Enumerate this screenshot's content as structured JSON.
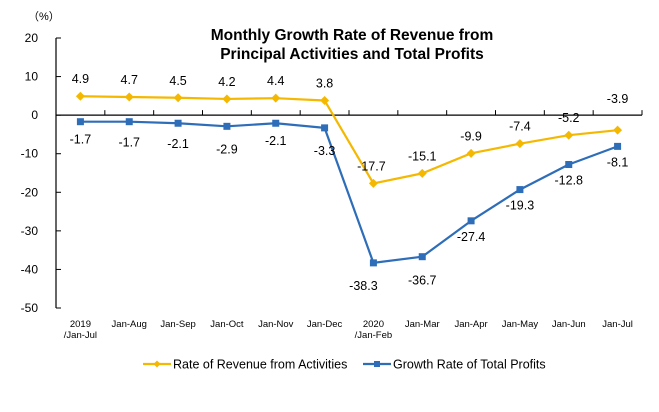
{
  "chart_data": {
    "type": "line",
    "title": [
      "Monthly Growth Rate of Revenue from",
      "Principal Activities  and Total Profits"
    ],
    "unit_label": "（%）",
    "xlabel": "",
    "ylabel": "%",
    "ylim": [
      -50,
      20
    ],
    "yticks": [
      20,
      10,
      0,
      -10,
      -20,
      -30,
      -40,
      -50
    ],
    "grid": false,
    "legend_position": "bottom",
    "categories": [
      [
        "2019",
        "/Jan-Jul"
      ],
      [
        "Jan-Aug"
      ],
      [
        "Jan-Sep"
      ],
      [
        "Jan-Oct"
      ],
      [
        "Jan-Nov"
      ],
      [
        "Jan-Dec"
      ],
      [
        "2020",
        "/Jan-Feb"
      ],
      [
        "Jan-Mar"
      ],
      [
        "Jan-Apr"
      ],
      [
        "Jan-May"
      ],
      [
        "Jan-Jun"
      ],
      [
        "Jan-Jul"
      ]
    ],
    "series": [
      {
        "name": "Rate of Revenue from Activities",
        "color": "#F5B800",
        "marker": "diamond",
        "values": [
          4.9,
          4.7,
          4.5,
          4.2,
          4.4,
          3.8,
          -17.7,
          -15.1,
          -9.9,
          -7.4,
          -5.2,
          -3.9
        ],
        "labels": [
          "4.9",
          "4.7",
          "4.5",
          "4.2",
          "4.4",
          "3.8",
          "-17.7",
          "-15.1",
          "-9.9",
          "-7.4",
          "-5.2",
          "-3.9"
        ]
      },
      {
        "name": "Growth Rate of Total Profits",
        "color": "#2E6DB8",
        "marker": "square",
        "values": [
          -1.7,
          -1.7,
          -2.1,
          -2.9,
          -2.1,
          -3.3,
          -38.3,
          -36.7,
          -27.4,
          -19.3,
          -12.8,
          -8.1
        ],
        "labels": [
          "-1.7",
          "-1.7",
          "-2.1",
          "-2.9",
          "-2.1",
          "-3.3",
          "-38.3",
          "-36.7",
          "-27.4",
          "-19.3",
          "-12.8",
          "-8.1"
        ]
      }
    ]
  }
}
